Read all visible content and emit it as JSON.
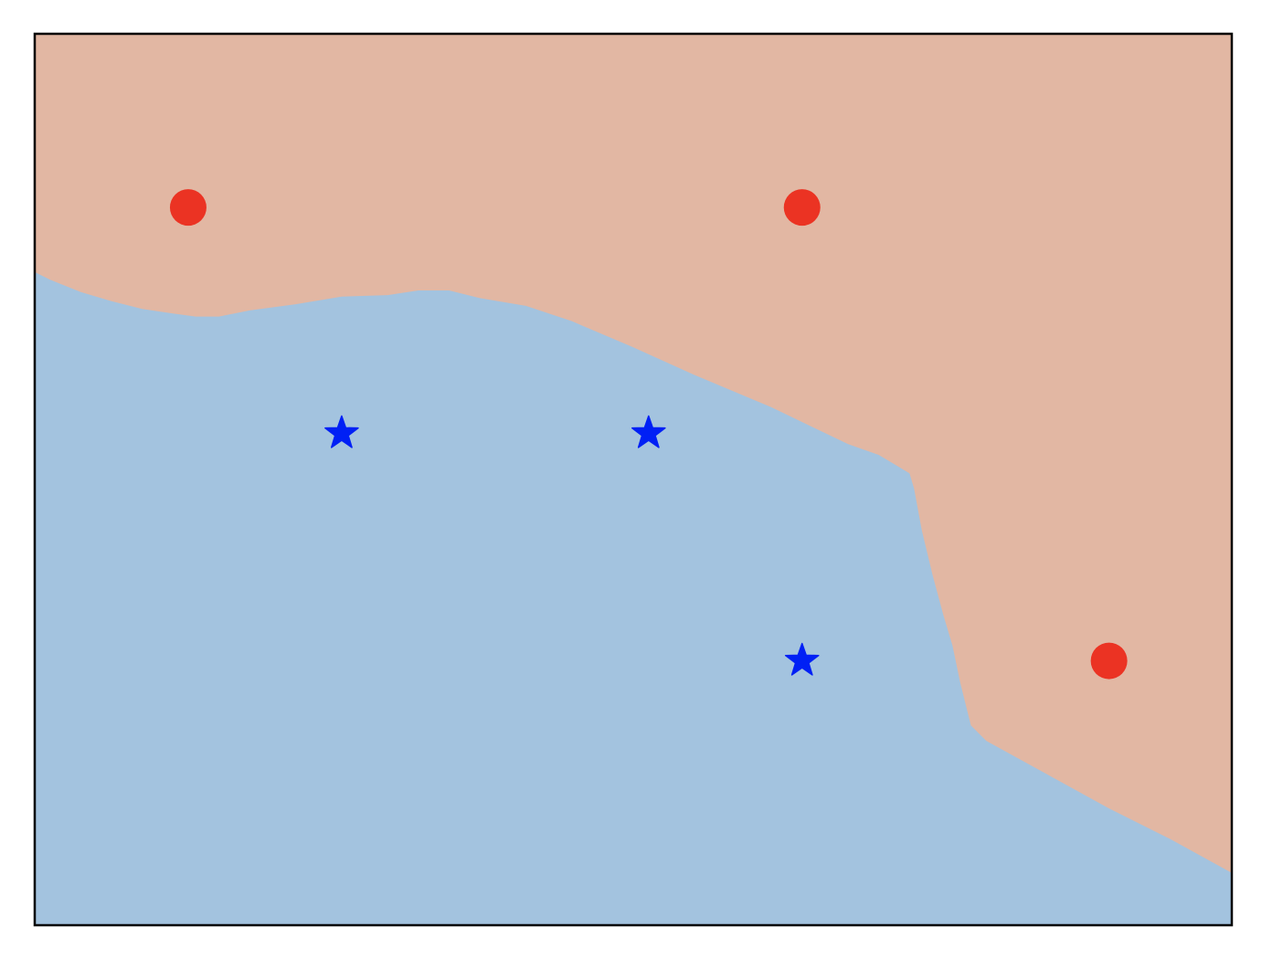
{
  "chart_data": {
    "type": "scatter",
    "title": "",
    "xlabel": "",
    "ylabel": "",
    "xlim": [
      0,
      7.8
    ],
    "ylim": [
      0,
      5.8
    ],
    "grid": false,
    "ticks_visible": false,
    "legend": "none",
    "region_colors": {
      "class_0": "#e2b7a3",
      "class_1": "#a3c3df"
    },
    "series": [
      {
        "marker": "circle",
        "color": "#eb3323",
        "points": [
          [
            1,
            4.67
          ],
          [
            5,
            4.67
          ],
          [
            7,
            1.72
          ]
        ]
      },
      {
        "marker": "star",
        "color": "#0020f5",
        "points": [
          [
            2,
            3.2
          ],
          [
            4,
            3.2
          ],
          [
            5,
            1.72
          ]
        ]
      }
    ],
    "decision_boundary": [
      [
        0,
        4.25
      ],
      [
        0.1,
        4.2
      ],
      [
        0.3,
        4.12
      ],
      [
        0.5,
        4.06
      ],
      [
        0.7,
        4.01
      ],
      [
        0.9,
        3.98
      ],
      [
        1.05,
        3.96
      ],
      [
        1.2,
        3.96
      ],
      [
        1.4,
        4.0
      ],
      [
        1.7,
        4.04
      ],
      [
        2.0,
        4.09
      ],
      [
        2.3,
        4.1
      ],
      [
        2.5,
        4.13
      ],
      [
        2.7,
        4.13
      ],
      [
        2.9,
        4.08
      ],
      [
        3.2,
        4.03
      ],
      [
        3.5,
        3.93
      ],
      [
        3.9,
        3.76
      ],
      [
        4.3,
        3.58
      ],
      [
        4.8,
        3.37
      ],
      [
        5.3,
        3.13
      ],
      [
        5.5,
        3.06
      ],
      [
        5.6,
        3.0
      ],
      [
        5.7,
        2.94
      ],
      [
        5.73,
        2.84
      ],
      [
        5.78,
        2.57
      ],
      [
        5.85,
        2.28
      ],
      [
        5.92,
        2.02
      ],
      [
        5.98,
        1.82
      ],
      [
        6.03,
        1.58
      ],
      [
        6.1,
        1.3
      ],
      [
        6.2,
        1.2
      ],
      [
        6.6,
        0.98
      ],
      [
        7.0,
        0.76
      ],
      [
        7.4,
        0.56
      ],
      [
        7.8,
        0.34
      ]
    ]
  }
}
